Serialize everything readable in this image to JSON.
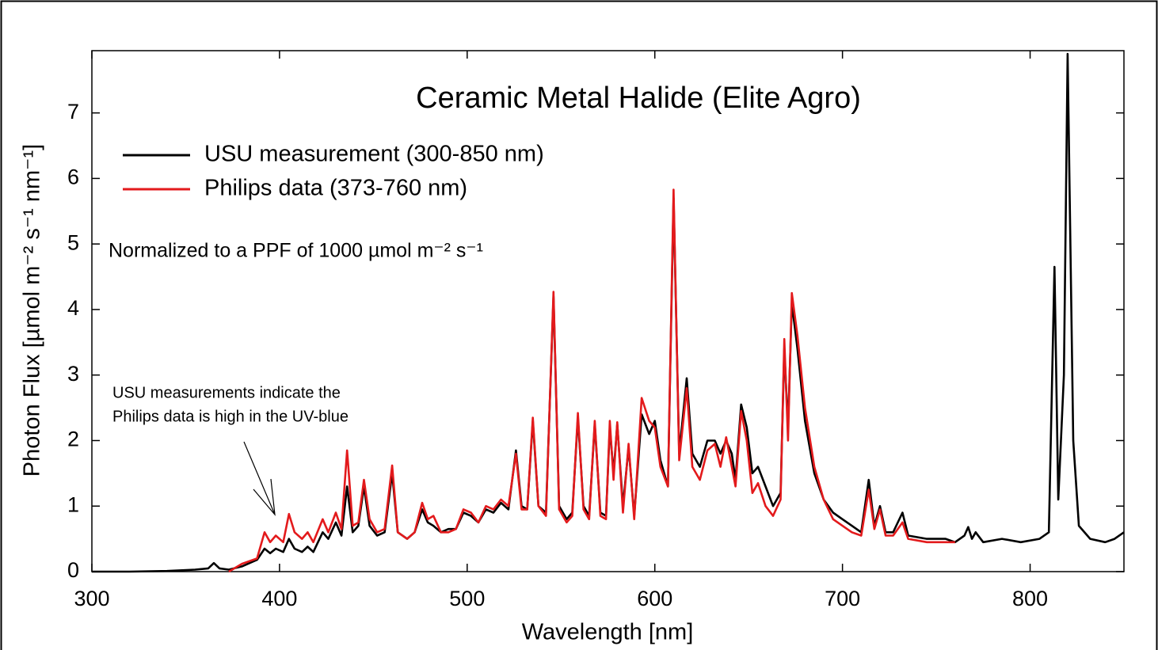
{
  "chart_data": {
    "type": "line",
    "title": "Ceramic Metal Halide (Elite Agro)",
    "xlabel": "Wavelength [nm]",
    "ylabel": "Photon Flux [µmol m⁻² s⁻¹ nm⁻¹]",
    "annotations": [
      "Normalized to a PPF of 1000 µmol m⁻² s⁻¹",
      "USU measurements indicate the",
      "Philips data is high in the UV-blue"
    ],
    "xlim": [
      300,
      850
    ],
    "ylim": [
      0,
      7.95
    ],
    "xticks": [
      300,
      400,
      500,
      600,
      700,
      800
    ],
    "yticks": [
      0,
      1,
      2,
      3,
      4,
      5,
      6,
      7
    ],
    "grid": false,
    "legend": "upper left",
    "x": [
      300,
      320,
      340,
      355,
      362,
      365,
      368,
      373,
      380,
      388,
      392,
      395,
      398,
      402,
      405,
      408,
      412,
      415,
      418,
      423,
      426,
      430,
      433,
      436,
      439,
      442,
      445,
      448,
      452,
      456,
      460,
      463,
      468,
      472,
      476,
      479,
      482,
      486,
      490,
      494,
      498,
      502,
      506,
      510,
      514,
      518,
      522,
      526,
      529,
      532,
      535,
      538,
      542,
      546,
      549,
      553,
      556,
      559,
      562,
      565,
      568,
      571,
      574,
      576,
      578,
      580,
      583,
      586,
      589,
      593,
      597,
      600,
      603,
      607,
      610,
      613,
      617,
      620,
      624,
      628,
      632,
      635,
      638,
      641,
      643,
      646,
      649,
      652,
      655,
      659,
      663,
      667,
      669,
      671,
      673,
      676,
      680,
      685,
      690,
      695,
      700,
      705,
      710,
      714,
      717,
      720,
      723,
      727,
      732,
      735,
      745,
      755,
      760,
      765,
      767,
      769,
      771,
      775,
      785,
      795,
      805,
      810,
      813,
      815,
      818,
      820,
      823,
      826,
      832,
      840,
      845,
      850
    ],
    "series": [
      {
        "name": "USU measurement (300-850 nm)",
        "color": "#000000",
        "values": [
          0,
          0,
          0.01,
          0.03,
          0.05,
          0.13,
          0.05,
          0.03,
          0.08,
          0.18,
          0.35,
          0.28,
          0.35,
          0.3,
          0.5,
          0.35,
          0.3,
          0.38,
          0.3,
          0.6,
          0.5,
          0.75,
          0.55,
          1.3,
          0.6,
          0.7,
          1.3,
          0.7,
          0.55,
          0.6,
          1.5,
          0.6,
          0.5,
          0.6,
          0.95,
          0.75,
          0.7,
          0.6,
          0.65,
          0.65,
          0.9,
          0.85,
          0.75,
          0.95,
          0.9,
          1.05,
          0.95,
          1.85,
          1.0,
          0.95,
          2.3,
          1.0,
          0.9,
          4.2,
          1.0,
          0.8,
          0.9,
          2.35,
          1.0,
          0.85,
          2.25,
          0.9,
          0.85,
          2.2,
          1.5,
          2.25,
          1.0,
          1.9,
          0.85,
          2.4,
          2.1,
          2.3,
          1.7,
          1.3,
          5.7,
          1.8,
          2.95,
          1.8,
          1.6,
          2.0,
          2.0,
          1.8,
          2.0,
          1.8,
          1.4,
          2.55,
          2.2,
          1.5,
          1.6,
          1.3,
          1.0,
          1.2,
          3.4,
          2.2,
          4.1,
          3.4,
          2.3,
          1.5,
          1.1,
          0.9,
          0.8,
          0.7,
          0.6,
          1.4,
          0.7,
          1.0,
          0.6,
          0.6,
          0.9,
          0.55,
          0.5,
          0.5,
          0.45,
          0.55,
          0.68,
          0.5,
          0.6,
          0.45,
          0.5,
          0.45,
          0.5,
          0.6,
          4.65,
          1.1,
          3.0,
          7.9,
          2.0,
          0.7,
          0.5,
          0.45,
          0.5,
          0.6
        ]
      },
      {
        "name": "Philips data (373-760 nm)",
        "color": "#e31a1c",
        "values": [
          null,
          null,
          null,
          null,
          null,
          null,
          null,
          0,
          0.12,
          0.2,
          0.6,
          0.45,
          0.55,
          0.45,
          0.88,
          0.6,
          0.5,
          0.6,
          0.45,
          0.8,
          0.6,
          0.9,
          0.65,
          1.85,
          0.7,
          0.75,
          1.4,
          0.8,
          0.6,
          0.65,
          1.62,
          0.6,
          0.5,
          0.6,
          1.05,
          0.8,
          0.85,
          0.6,
          0.6,
          0.65,
          0.95,
          0.9,
          0.75,
          1.0,
          0.95,
          1.1,
          1.0,
          1.8,
          0.95,
          0.95,
          2.35,
          1.0,
          0.85,
          4.27,
          0.95,
          0.75,
          0.85,
          2.42,
          0.95,
          0.8,
          2.3,
          0.85,
          0.8,
          2.3,
          1.4,
          2.28,
          0.9,
          1.95,
          0.8,
          2.65,
          2.3,
          2.2,
          1.6,
          1.3,
          5.83,
          1.7,
          2.8,
          1.6,
          1.4,
          1.85,
          1.95,
          1.6,
          2.05,
          1.6,
          1.3,
          2.45,
          2.0,
          1.2,
          1.35,
          1.0,
          0.85,
          1.1,
          3.55,
          2.0,
          4.25,
          3.6,
          2.5,
          1.6,
          1.1,
          0.8,
          0.7,
          0.6,
          0.55,
          1.25,
          0.65,
          0.95,
          0.55,
          0.55,
          0.75,
          0.5,
          0.45,
          0.45,
          0.45,
          null,
          null,
          null,
          null,
          null,
          null,
          null,
          null,
          null,
          null,
          null,
          null,
          null,
          null,
          null,
          null,
          null,
          null,
          null
        ]
      }
    ]
  }
}
